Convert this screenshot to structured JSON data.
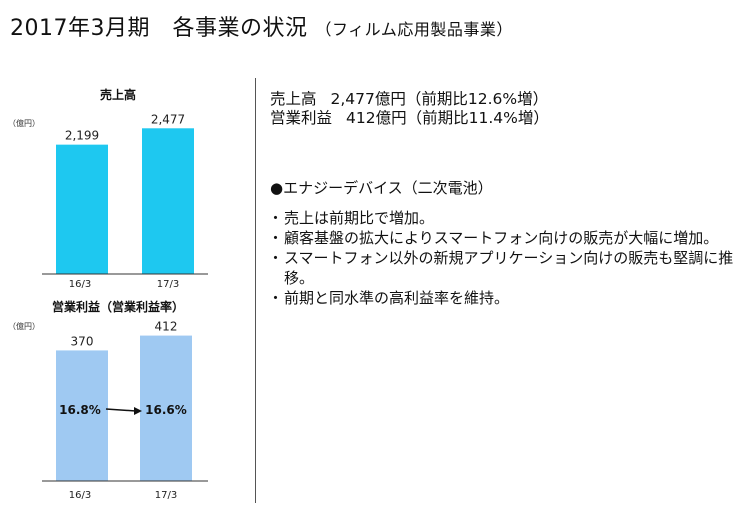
{
  "page": {
    "title": "2017年3月期　各事業の状況",
    "subtitle": "（フィルム応用製品事業）"
  },
  "colors": {
    "sales_bar": "#1ec8f0",
    "profit_bar": "#9fc9f2",
    "axis": "#333333",
    "text": "#111111"
  },
  "chart_data": [
    {
      "type": "bar",
      "title": "売上高",
      "unit_label": "（億円）",
      "categories": [
        "16/3",
        "17/3"
      ],
      "values": [
        2199,
        2477
      ],
      "value_labels": [
        "2,199",
        "2,477"
      ],
      "ylim": [
        0,
        2550
      ],
      "grid": false
    },
    {
      "type": "bar",
      "title": "営業利益（営業利益率）",
      "unit_label": "（億円）",
      "categories": [
        "16/3",
        "17/3"
      ],
      "values": [
        370,
        412
      ],
      "value_labels": [
        "370",
        "412"
      ],
      "ylim": [
        0,
        425
      ],
      "grid": false,
      "margin_labels": [
        "16.8%",
        "16.6%"
      ],
      "annotation": "arrow from 16.8% to 16.6%"
    }
  ],
  "summary": {
    "line1_label": "売上高",
    "line1_value": "2,477億円（前期比12.6%増）",
    "line2_label": "営業利益",
    "line2_value": "412億円（前期比11.4%増）"
  },
  "section": {
    "heading": "●エナジーデバイス（二次電池）",
    "bullets": [
      "売上は前期比で増加。",
      "顧客基盤の拡大によりスマートフォン向けの販売が大幅に増加。",
      "スマートフォン以外の新規アプリケーション向けの販売も堅調に推移。",
      "前期と同水準の高利益率を維持。"
    ]
  }
}
